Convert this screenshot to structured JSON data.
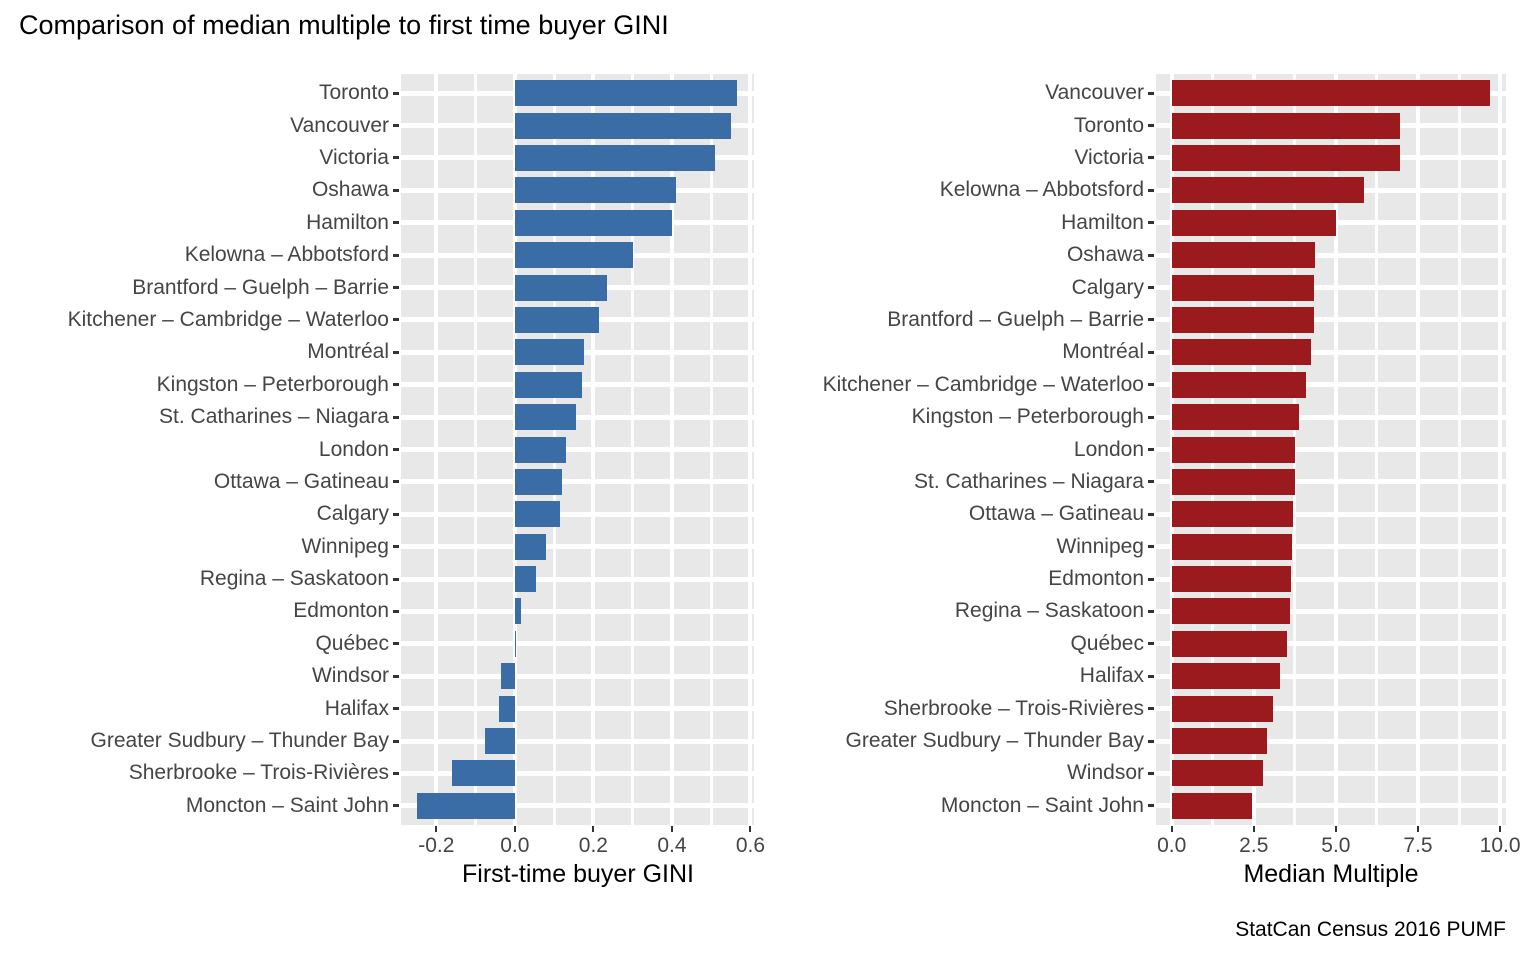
{
  "title": "Comparison of median multiple to first time buyer GINI",
  "caption": "StatCan Census 2016 PUMF",
  "colors": {
    "panel_background": "#E8E8E8",
    "gridline": "#FFFFFF",
    "axis_text": "#454545",
    "tick_mark": "#333333",
    "gini_bar_blue": "#3A6CA6",
    "median_multiple_bar_red": "#9A1A1E"
  },
  "chart_data": [
    {
      "type": "bar",
      "orientation": "horizontal",
      "title": "",
      "xlabel": "First-time buyer GINI",
      "ylabel": "",
      "legend": "none",
      "grid": true,
      "bar_color": "#3A6CA6",
      "xlim": [
        -0.29,
        0.609
      ],
      "x_major_ticks": [
        -0.2,
        0.0,
        0.2,
        0.4,
        0.6
      ],
      "x_tick_labels": [
        "-0.2",
        "0.0",
        "0.2",
        "0.4",
        "0.6"
      ],
      "x_minor_ticks": [
        -0.1,
        0.1,
        0.3,
        0.5
      ],
      "categories": [
        "Toronto",
        "Vancouver",
        "Victoria",
        "Oshawa",
        "Hamilton",
        "Kelowna – Abbotsford",
        "Brantford – Guelph – Barrie",
        "Kitchener – Cambridge – Waterloo",
        "Montréal",
        "Kingston – Peterborough",
        "St. Catharines – Niagara",
        "London",
        "Ottawa – Gatineau",
        "Calgary",
        "Winnipeg",
        "Regina – Saskatoon",
        "Edmonton",
        "Québec",
        "Windsor",
        "Halifax",
        "Greater Sudbury – Thunder Bay",
        "Sherbrooke – Trois-Rivières",
        "Moncton – Saint John"
      ],
      "values": [
        0.565,
        0.55,
        0.51,
        0.41,
        0.4,
        0.3,
        0.235,
        0.215,
        0.175,
        0.17,
        0.155,
        0.13,
        0.12,
        0.115,
        0.08,
        0.055,
        0.015,
        0.003,
        -0.035,
        -0.04,
        -0.075,
        -0.16,
        -0.25
      ]
    },
    {
      "type": "bar",
      "orientation": "horizontal",
      "title": "",
      "xlabel": "Median Multiple",
      "ylabel": "",
      "legend": "none",
      "grid": true,
      "bar_color": "#9A1A1E",
      "xlim": [
        -0.478,
        10.18
      ],
      "x_major_ticks": [
        0.0,
        2.5,
        5.0,
        7.5,
        10.0
      ],
      "x_tick_labels": [
        "0.0",
        "2.5",
        "5.0",
        "7.5",
        "10.0"
      ],
      "x_minor_ticks": [
        1.25,
        3.75,
        6.25,
        8.75
      ],
      "categories": [
        "Vancouver",
        "Toronto",
        "Victoria",
        "Kelowna – Abbotsford",
        "Hamilton",
        "Oshawa",
        "Calgary",
        "Brantford – Guelph – Barrie",
        "Montréal",
        "Kitchener – Cambridge – Waterloo",
        "Kingston – Peterborough",
        "London",
        "St. Catharines – Niagara",
        "Ottawa – Gatineau",
        "Winnipeg",
        "Edmonton",
        "Regina – Saskatoon",
        "Québec",
        "Halifax",
        "Sherbrooke – Trois-Rivières",
        "Greater Sudbury – Thunder Bay",
        "Windsor",
        "Moncton – Saint John"
      ],
      "values": [
        9.7,
        6.95,
        6.95,
        5.85,
        5.0,
        4.37,
        4.33,
        4.33,
        4.25,
        4.1,
        3.88,
        3.75,
        3.75,
        3.7,
        3.65,
        3.62,
        3.6,
        3.5,
        3.3,
        3.1,
        2.9,
        2.78,
        2.45
      ]
    }
  ]
}
